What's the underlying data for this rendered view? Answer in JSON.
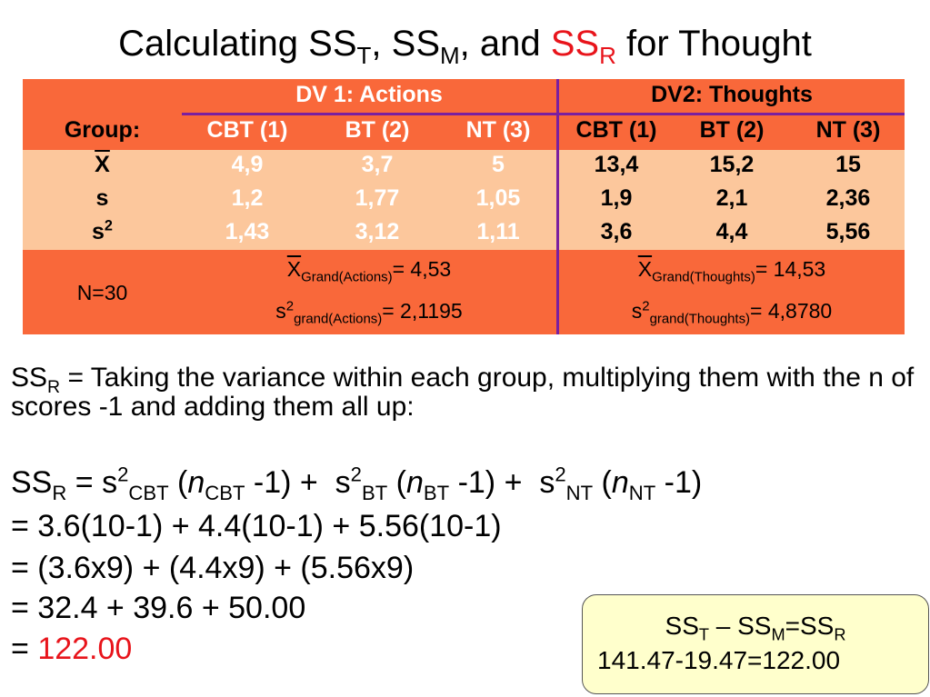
{
  "title": [
    "Calculating SS",
    "T",
    ", SS",
    "M",
    ", and ",
    "SS",
    "R",
    " for Thought"
  ],
  "table": {
    "dv_headers": [
      "DV 1: Actions",
      "DV2: Thoughts"
    ],
    "group_label": "Group:",
    "groups": [
      "CBT (1)",
      "BT (2)",
      "NT (3)",
      "CBT (1)",
      "BT (2)",
      "NT (3)"
    ],
    "rows": [
      {
        "label": [
          "X"
        ],
        "values": [
          "4,9",
          "3,7",
          "5",
          "13,4",
          "15,2",
          "15"
        ]
      },
      {
        "label": [
          "s"
        ],
        "values": [
          "1,2",
          "1,77",
          "1,05",
          "1,9",
          "2,1",
          "2,36"
        ]
      },
      {
        "label": [
          "s",
          "2"
        ],
        "values": [
          "1,43",
          "3,12",
          "1,11",
          "3,6",
          "4,4",
          "5,56"
        ]
      }
    ],
    "n": "N=30",
    "grand_actions": {
      "mean": [
        "X",
        "Grand(Actions)",
        "= 4,53"
      ],
      "var": [
        "s",
        "2",
        "grand(Actions)",
        "= 2,1195"
      ]
    },
    "grand_thoughts": {
      "mean": [
        "X",
        "Grand(Thoughts)",
        "= 14,53"
      ],
      "var": [
        "s",
        "2",
        "grand(Thoughts)",
        "= 4,8780"
      ]
    }
  },
  "definition": [
    "SS",
    "R",
    " = Taking the variance within each group, multiplying them with the n of scores -1 and adding them all up:"
  ],
  "formula": {
    "line1": [
      "SS",
      "R",
      " = s",
      "2",
      "CBT",
      " (",
      "n",
      "CBT",
      " -1) +  s",
      "2",
      "BT",
      " (",
      "n",
      "BT",
      " -1) +  s",
      "2",
      "NT",
      " (",
      "n",
      "NT",
      " -1)"
    ],
    "line2": "= 3.6(10-1) + 4.4(10-1) + 5.56(10-1)",
    "line3": "= (3.6x9) + (4.4x9) + (5.56x9)",
    "line4": "= 32.4 + 39.6 + 50.00",
    "line5": [
      "= ",
      "122.00"
    ]
  },
  "box": {
    "line1": [
      "SS",
      "T",
      " – SS",
      "M",
      "=SS",
      "R"
    ],
    "line2": "141.47-19.47=122.00"
  }
}
